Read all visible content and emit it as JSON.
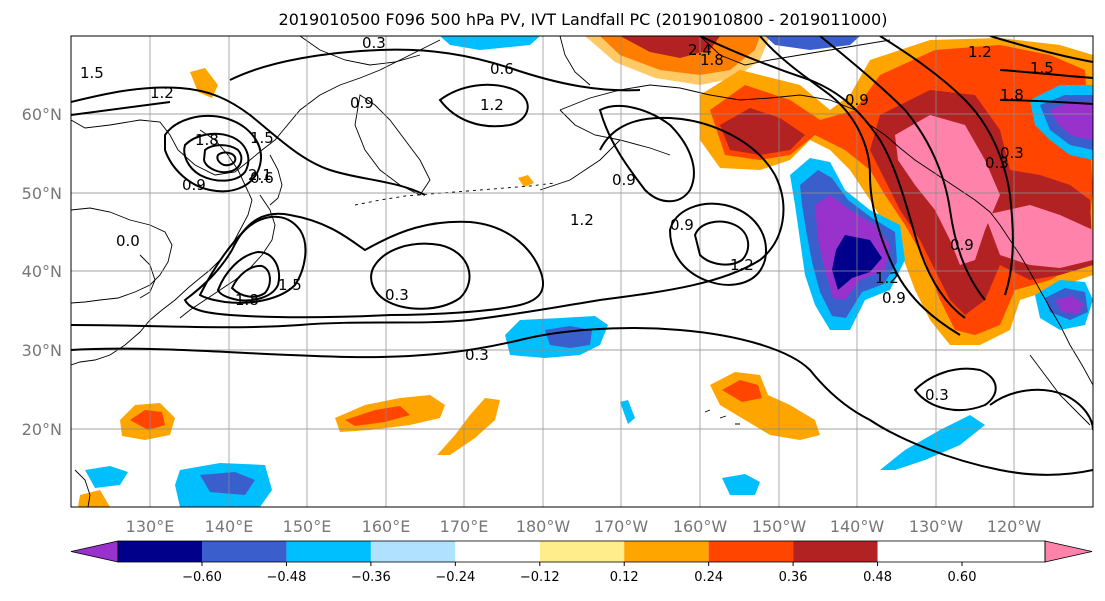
{
  "title": "2019010500 F096 500 hPa PV, IVT Landfall PC (2019010800 - 2019011000)",
  "map": {
    "lon_ticks": [
      "130°E",
      "140°E",
      "150°E",
      "160°E",
      "170°E",
      "180°W",
      "170°W",
      "160°W",
      "150°W",
      "140°W",
      "130°W",
      "120°W"
    ],
    "lat_ticks": [
      "60°N",
      "50°N",
      "40°N",
      "30°N",
      "20°N"
    ],
    "grid": true,
    "contour_color": "#000000"
  },
  "contour_labels": [
    {
      "id": "c1",
      "text": "1.5"
    },
    {
      "id": "c2",
      "text": "1.2"
    },
    {
      "id": "c3",
      "text": "1.8"
    },
    {
      "id": "c4",
      "text": "1.5"
    },
    {
      "id": "c5",
      "text": "2.1"
    },
    {
      "id": "c6",
      "text": "0.9"
    },
    {
      "id": "c7",
      "text": "0.9"
    },
    {
      "id": "c8",
      "text": "0.6"
    },
    {
      "id": "c9",
      "text": "1.2"
    },
    {
      "id": "c10",
      "text": "0.3"
    },
    {
      "id": "c11",
      "text": "1.8"
    },
    {
      "id": "c12",
      "text": "1.5"
    },
    {
      "id": "c13",
      "text": "0.3"
    },
    {
      "id": "c14",
      "text": "0.3"
    },
    {
      "id": "c15",
      "text": "1.2"
    },
    {
      "id": "c16",
      "text": "0.9"
    },
    {
      "id": "c17",
      "text": "0.9"
    },
    {
      "id": "c18",
      "text": "1.2"
    },
    {
      "id": "c19",
      "text": "2.4"
    },
    {
      "id": "c20",
      "text": "1.8"
    },
    {
      "id": "c21",
      "text": "0.9"
    },
    {
      "id": "c22",
      "text": "1.2"
    },
    {
      "id": "c23",
      "text": "1.5"
    },
    {
      "id": "c24",
      "text": "1.8"
    },
    {
      "id": "c25",
      "text": "0.3"
    },
    {
      "id": "c26",
      "text": "0.9"
    },
    {
      "id": "c27",
      "text": "1.2"
    },
    {
      "id": "c28",
      "text": "0.9"
    },
    {
      "id": "c29",
      "text": "0.3"
    },
    {
      "id": "c30",
      "text": "0.6"
    },
    {
      "id": "c31",
      "text": "0.0"
    },
    {
      "id": "c32",
      "text": "0.3"
    }
  ],
  "colorbar": {
    "colors": [
      "#9932cc",
      "#00008b",
      "#3a5fcd",
      "#00bfff",
      "#b0e2ff",
      "#ffffff",
      "#ffec8b",
      "#ffa500",
      "#ff4500",
      "#b22222",
      "#ff82ab"
    ],
    "tick_labels": [
      "−0.60",
      "−0.48",
      "−0.36",
      "−0.24",
      "−0.12",
      "0.12",
      "0.24",
      "0.36",
      "0.48",
      "0.60"
    ],
    "extend": "both"
  }
}
